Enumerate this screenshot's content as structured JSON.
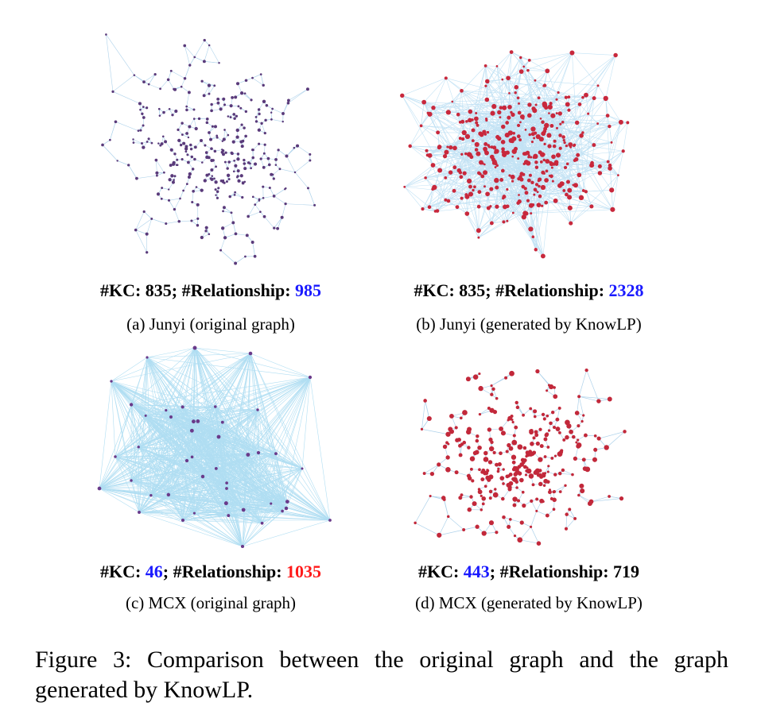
{
  "panels": [
    {
      "kc_label": "#KC: ",
      "kc": 835,
      "rel_label": "; #Relationship: ",
      "rel": 985,
      "kc_color": "#000000",
      "rel_color": "#1a1aff",
      "caption": "(a) Junyi (original graph)"
    },
    {
      "kc_label": "#KC: ",
      "kc": 835,
      "rel_label": "; #Relationship: ",
      "rel": 2328,
      "kc_color": "#000000",
      "rel_color": "#1a1aff",
      "caption": "(b) Junyi (generated by KnowLP)"
    },
    {
      "kc_label": "#KC: ",
      "kc": 46,
      "rel_label": "; #Relationship: ",
      "rel": 1035,
      "kc_color": "#1a1aff",
      "rel_color": "#ff1a1a",
      "caption": "(c) MCX (original graph)"
    },
    {
      "kc_label": "#KC: ",
      "kc": 443,
      "rel_label": "; #Relationship: ",
      "rel": 719,
      "kc_color": "#1a1aff",
      "rel_color": "#000000",
      "caption": "(d) MCX (generated by KnowLP)"
    }
  ],
  "figure_caption": "Figure 3: Comparison between the original graph and the graph generated by KnowLP."
}
